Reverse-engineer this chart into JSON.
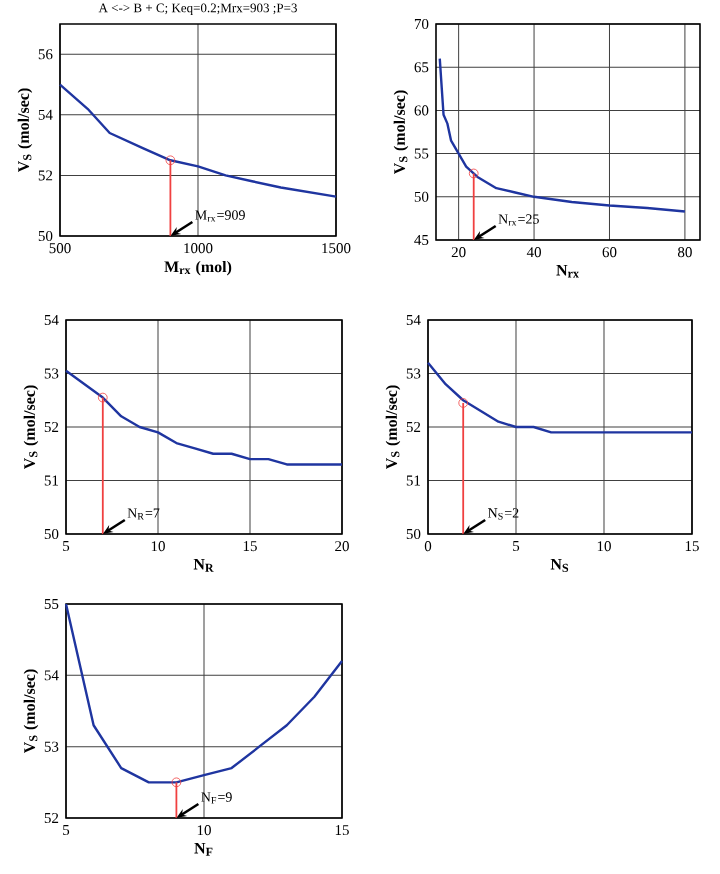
{
  "chart_data": [
    {
      "type": "line",
      "title": "A <-> B + C; Keq=0.2;Mrx=903 ;P=3",
      "xlabel": "M$_{rx}$ (mol)",
      "ylabel": "V$_{S}$ (mol/sec)",
      "xlim": [
        500,
        1500
      ],
      "ylim": [
        50,
        57
      ],
      "xticks": [
        500,
        1000,
        1500
      ],
      "yticks": [
        50,
        52,
        54,
        56
      ],
      "grid": true,
      "series": [
        {
          "color": "#1f35a0",
          "x": [
            500,
            600,
            680,
            800,
            900,
            1000,
            1100,
            1200,
            1300,
            1400,
            1500
          ],
          "values": [
            55.0,
            54.2,
            53.4,
            52.9,
            52.5,
            52.3,
            52.0,
            51.8,
            51.6,
            51.45,
            51.3
          ]
        },
        {
          "type": "lollipop",
          "marker": "circle",
          "color": "#f04040",
          "x": [
            900
          ],
          "values": [
            52.5
          ]
        }
      ],
      "annotations": [
        "M$_{rx}$=909"
      ]
    },
    {
      "type": "line",
      "xlabel": "N$_{rx}$",
      "ylabel": "V$_{S}$ (mol/sec)",
      "xlim": [
        14,
        84
      ],
      "ylim": [
        45,
        70
      ],
      "xticks": [
        20,
        40,
        60,
        80
      ],
      "yticks": [
        45,
        50,
        55,
        60,
        65,
        70
      ],
      "grid": true,
      "series": [
        {
          "color": "#1f35a0",
          "x": [
            15,
            16,
            17,
            18,
            20,
            22,
            25,
            30,
            35,
            40,
            50,
            60,
            70,
            80
          ],
          "values": [
            66,
            59.5,
            58.5,
            56.5,
            55,
            53.5,
            52.3,
            51,
            50.5,
            50,
            49.4,
            49,
            48.7,
            48.3
          ]
        },
        {
          "type": "lollipop",
          "marker": "circle",
          "color": "#f04040",
          "x": [
            24
          ],
          "values": [
            52.7
          ]
        }
      ],
      "annotations": [
        "N$_{rx}$=25"
      ]
    },
    {
      "type": "line",
      "xlabel": "N$_{R}$",
      "ylabel": "V$_{S}$ (mol/sec)",
      "xlim": [
        5,
        20
      ],
      "ylim": [
        50,
        54
      ],
      "xticks": [
        5,
        10,
        15,
        20
      ],
      "yticks": [
        50,
        51,
        52,
        53,
        54
      ],
      "grid": true,
      "series": [
        {
          "color": "#1f35a0",
          "x": [
            5,
            6,
            7,
            8,
            9,
            10,
            11,
            12,
            13,
            14,
            15,
            16,
            17,
            18,
            19,
            20
          ],
          "values": [
            53.05,
            52.8,
            52.55,
            52.2,
            52.0,
            51.9,
            51.7,
            51.6,
            51.5,
            51.5,
            51.4,
            51.4,
            51.3,
            51.3,
            51.3,
            51.3
          ]
        },
        {
          "type": "lollipop",
          "marker": "circle",
          "color": "#f04040",
          "x": [
            7
          ],
          "values": [
            52.55
          ]
        }
      ],
      "annotations": [
        "N$_{R}$=7"
      ]
    },
    {
      "type": "line",
      "xlabel": "N$_{S}$",
      "ylabel": "V$_{S}$ (mol/sec)",
      "xlim": [
        0,
        15
      ],
      "ylim": [
        50,
        54
      ],
      "xticks": [
        0,
        5,
        10,
        15
      ],
      "yticks": [
        50,
        51,
        52,
        53,
        54
      ],
      "grid": true,
      "series": [
        {
          "color": "#1f35a0",
          "x": [
            0,
            1,
            2,
            3,
            4,
            5,
            6,
            7,
            8,
            10,
            12,
            15
          ],
          "values": [
            53.2,
            52.8,
            52.5,
            52.3,
            52.1,
            52.0,
            52.0,
            51.9,
            51.9,
            51.9,
            51.9,
            51.9
          ]
        },
        {
          "type": "lollipop",
          "marker": "circle",
          "color": "#f04040",
          "x": [
            2
          ],
          "values": [
            52.45
          ]
        }
      ],
      "annotations": [
        "N$_{S}$=2"
      ]
    },
    {
      "type": "line",
      "xlabel": "N$_{F}$",
      "ylabel": "V$_{S}$ (mol/sec)",
      "xlim": [
        5,
        15
      ],
      "ylim": [
        52,
        55
      ],
      "xticks": [
        5,
        10,
        15
      ],
      "yticks": [
        52,
        53,
        54,
        55
      ],
      "grid": true,
      "series": [
        {
          "color": "#1f35a0",
          "x": [
            5,
            6,
            7,
            8,
            9,
            10,
            11,
            12,
            13,
            14,
            15
          ],
          "values": [
            55.0,
            53.3,
            52.7,
            52.5,
            52.5,
            52.6,
            52.7,
            53.0,
            53.3,
            53.7,
            54.2
          ]
        },
        {
          "type": "lollipop",
          "marker": "circle",
          "color": "#f04040",
          "x": [
            9
          ],
          "values": [
            52.5
          ]
        }
      ],
      "annotations": [
        "N$_{F}$=9"
      ]
    }
  ]
}
